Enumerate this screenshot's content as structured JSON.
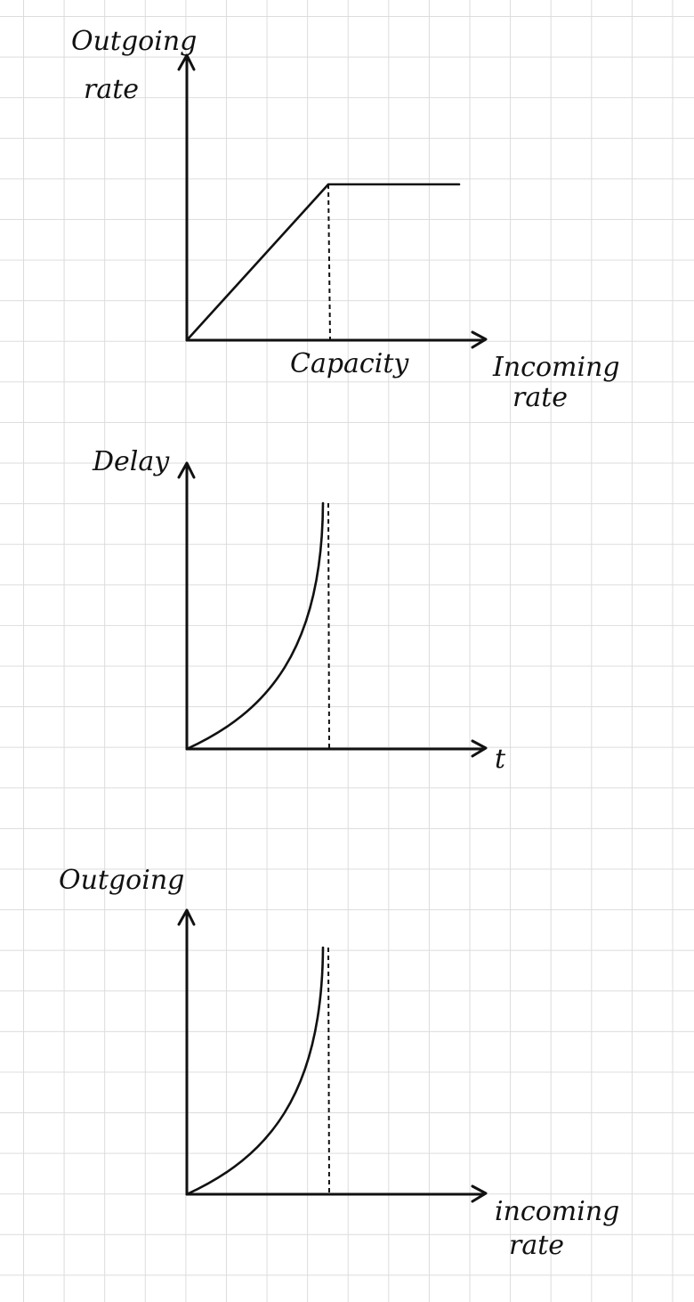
{
  "diagrams": [
    {
      "y_label_lines": [
        "Outgoing",
        "rate"
      ],
      "x_label_lines": [
        "Incoming",
        "rate"
      ],
      "marker_label": "Capacity"
    },
    {
      "y_label_lines": [
        "Delay"
      ],
      "x_label_lines": [
        "t"
      ],
      "marker_label": ""
    },
    {
      "y_label_lines": [
        "Outgoing"
      ],
      "x_label_lines": [
        "incoming",
        "rate"
      ],
      "marker_label": ""
    }
  ],
  "colors": {
    "ink": "#111111",
    "grid": "#dcdcdc",
    "paper": "#ffffff"
  }
}
